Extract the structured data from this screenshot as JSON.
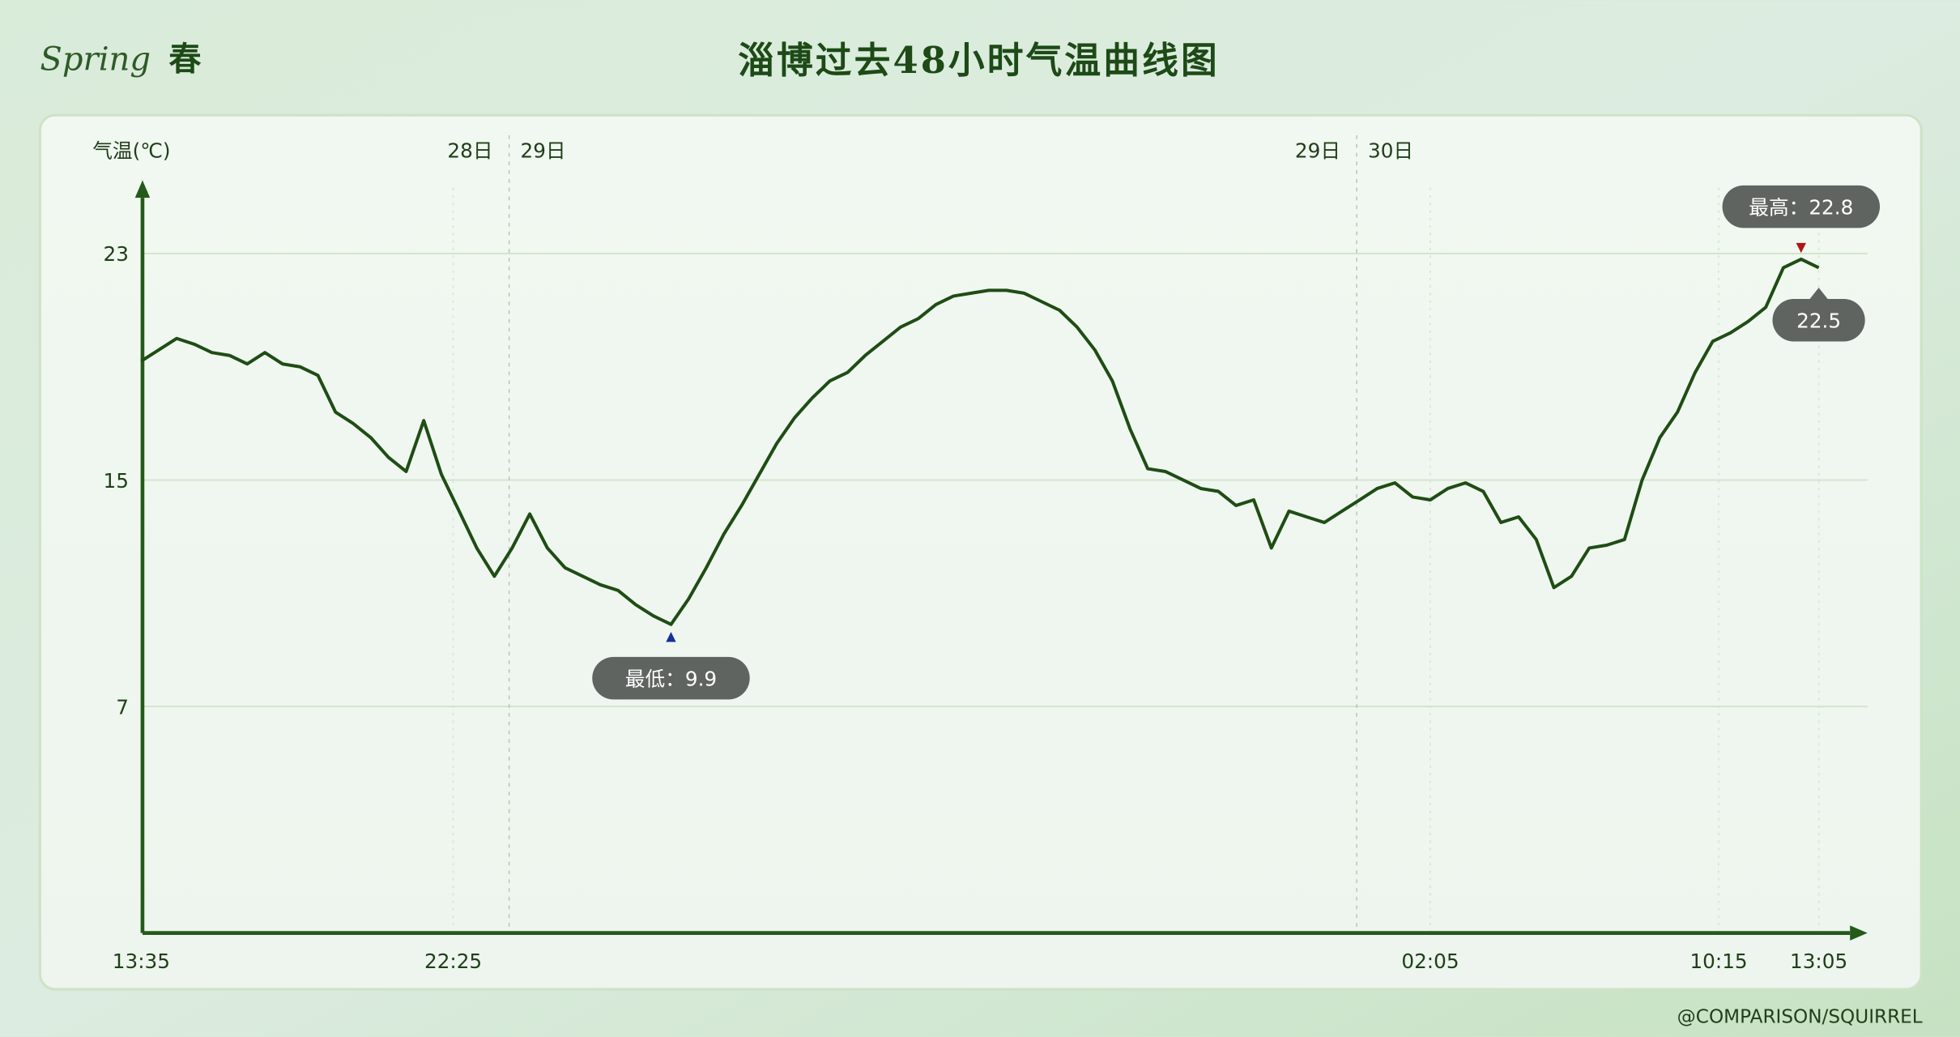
{
  "header": {
    "season_en": "Spring",
    "season_cn": "春",
    "title": "淄博过去48小时气温曲线图"
  },
  "watermark": "@COMPARISON/SQUIRREL",
  "colors": {
    "line": "#1f4d14",
    "axis": "#245a1a",
    "max_marker": "#b01515",
    "min_marker": "#1a2f9a",
    "tooltip_bg": "#5f6461"
  },
  "chart_data": {
    "type": "line",
    "title": "淄博过去48小时气温曲线图",
    "ylabel": "气温(℃)",
    "xlabel": "",
    "ylim": [
      -1,
      25.5
    ],
    "yticks": [
      7,
      15,
      23
    ],
    "grid": "horizontal",
    "x_ticks": [
      {
        "label": "13:35",
        "day": "28日"
      },
      {
        "label": "22:25",
        "day": "28日"
      },
      {
        "label": "02:05",
        "day": "30日"
      },
      {
        "label": "10:15",
        "day": "30日"
      },
      {
        "label": "13:05",
        "day": "30日"
      }
    ],
    "day_markers": [
      {
        "before": "28日",
        "after": "29日"
      },
      {
        "before": "29日",
        "after": "30日"
      }
    ],
    "x": [
      "13:35",
      "14:05",
      "14:35",
      "15:05",
      "15:35",
      "16:05",
      "16:35",
      "17:05",
      "17:35",
      "18:05",
      "18:35",
      "19:05",
      "19:35",
      "20:05",
      "20:35",
      "21:05",
      "21:35",
      "22:05",
      "22:35",
      "23:05",
      "23:35",
      "00:05",
      "00:35",
      "01:05",
      "01:35",
      "02:05",
      "02:35",
      "03:05",
      "03:35",
      "04:05",
      "04:35",
      "05:05",
      "05:35",
      "06:05",
      "06:35",
      "07:05",
      "07:35",
      "08:05",
      "08:35",
      "09:05",
      "09:35",
      "10:05",
      "10:35",
      "11:05",
      "11:35",
      "12:05",
      "12:35",
      "13:05",
      "13:35",
      "14:05",
      "14:35",
      "15:05",
      "15:35",
      "16:05",
      "16:35",
      "17:05",
      "17:35",
      "18:05",
      "18:35",
      "19:05",
      "19:35",
      "20:05",
      "20:35",
      "21:05",
      "21:35",
      "22:05",
      "22:35",
      "23:05",
      "23:35",
      "00:05",
      "00:35",
      "01:05",
      "01:35",
      "02:05",
      "02:35",
      "03:05",
      "03:35",
      "04:05",
      "04:35",
      "05:05",
      "05:35",
      "06:05",
      "06:35",
      "07:05",
      "07:35",
      "08:05",
      "08:35",
      "09:05",
      "09:35",
      "10:05",
      "10:35",
      "11:05",
      "11:35",
      "12:05",
      "12:35",
      "13:05"
    ],
    "series": [
      {
        "values": [
          19.2,
          19.6,
          20.0,
          19.8,
          19.5,
          19.4,
          19.1,
          19.5,
          19.1,
          19.0,
          18.7,
          17.4,
          17.0,
          16.5,
          15.8,
          15.3,
          17.1,
          15.2,
          13.9,
          12.6,
          11.6,
          12.6,
          13.8,
          12.6,
          11.9,
          11.6,
          11.3,
          11.1,
          10.6,
          10.2,
          9.9,
          10.8,
          11.9,
          13.1,
          14.1,
          15.2,
          16.3,
          17.2,
          17.9,
          18.5,
          18.8,
          19.4,
          19.9,
          20.4,
          20.7,
          21.2,
          21.5,
          21.6,
          21.7,
          21.7,
          21.6,
          21.3,
          21.0,
          20.4,
          19.6,
          18.5,
          16.8,
          15.4,
          15.3,
          15.0,
          14.7,
          14.6,
          14.1,
          14.3,
          12.6,
          13.9,
          13.7,
          13.5,
          13.9,
          14.3,
          14.7,
          14.9,
          14.4,
          14.3,
          14.7,
          14.9,
          14.6,
          13.5,
          13.7,
          12.9,
          11.2,
          11.6,
          12.6,
          12.7,
          12.9,
          15.0,
          16.5,
          17.4,
          18.8,
          19.9,
          20.2,
          20.6,
          21.1,
          22.5,
          22.8,
          22.5
        ]
      }
    ],
    "annotations": {
      "max_label": "最高：22.8",
      "min_label": "最低：9.9",
      "last_label": "22.5"
    }
  }
}
